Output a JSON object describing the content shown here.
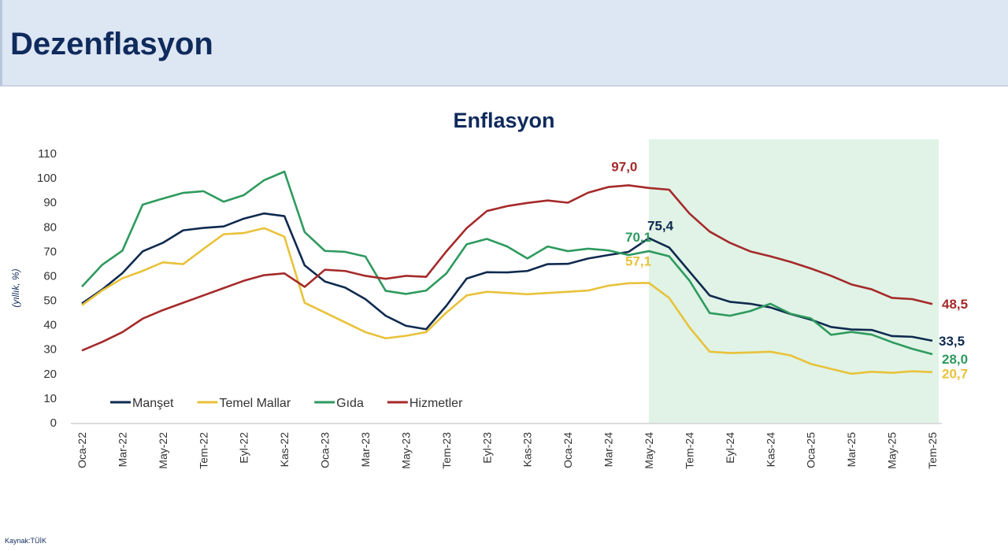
{
  "header": {
    "title": "Dezenflasyon"
  },
  "footer": {
    "source": "Kaynak:TÜİK"
  },
  "chart_data": {
    "type": "line",
    "title": "Enflasyon",
    "ylabel": "(yıllık, %)",
    "ylim": [
      0,
      110
    ],
    "yticks": [
      0,
      10,
      20,
      30,
      40,
      50,
      60,
      70,
      80,
      90,
      100,
      110
    ],
    "grid": false,
    "legend_position": "bottom-left",
    "x": [
      "Oca-22",
      "Şub-22",
      "Mar-22",
      "Nis-22",
      "May-22",
      "Haz-22",
      "Tem-22",
      "Ağu-22",
      "Eyl-22",
      "Eki-22",
      "Kas-22",
      "Ara-22",
      "Oca-23",
      "Şub-23",
      "Mar-23",
      "Nis-23",
      "May-23",
      "Haz-23",
      "Tem-23",
      "Ağu-23",
      "Eyl-23",
      "Eki-23",
      "Kas-23",
      "Ara-23",
      "Oca-24",
      "Şub-24",
      "Mar-24",
      "Nis-24",
      "May-24",
      "Haz-24",
      "Tem-24",
      "Ağu-24",
      "Eyl-24",
      "Eki-24",
      "Kas-24",
      "Ara-24",
      "Oca-25",
      "Şub-25",
      "Mar-25",
      "Nis-25",
      "May-25",
      "Haz-25",
      "Tem-25"
    ],
    "xtick_labels": [
      "Oca-22",
      "Mar-22",
      "May-22",
      "Tem-22",
      "Eyl-22",
      "Kas-22",
      "Oca-23",
      "Mar-23",
      "May-23",
      "Tem-23",
      "Eyl-23",
      "Kas-23",
      "Oca-24",
      "Mar-24",
      "May-24",
      "Tem-24",
      "Eyl-24",
      "Kas-24",
      "Oca-25",
      "Mar-25",
      "May-25",
      "Tem-25"
    ],
    "shaded_region": {
      "from": "May-24",
      "to": "Tem-25",
      "color": "#e0f3e6"
    },
    "series": [
      {
        "name": "Manşet",
        "color": "#0f2a4f",
        "values": [
          48.7,
          54.4,
          61.1,
          70.0,
          73.5,
          78.6,
          79.6,
          80.2,
          83.4,
          85.5,
          84.4,
          64.3,
          57.7,
          55.2,
          50.5,
          43.7,
          39.6,
          38.2,
          47.8,
          58.9,
          61.5,
          61.4,
          62.0,
          64.8,
          64.9,
          67.1,
          68.5,
          69.8,
          75.4,
          71.6,
          61.8,
          52.0,
          49.4,
          48.6,
          47.1,
          44.4,
          42.1,
          39.1,
          38.1,
          37.9,
          35.4,
          35.1,
          33.5
        ]
      },
      {
        "name": "Temel Mallar",
        "color": "#e8c23a",
        "values": [
          48.0,
          54.0,
          59.0,
          62.0,
          65.5,
          64.8,
          71.0,
          77.0,
          77.5,
          79.5,
          76.0,
          49.0,
          45.0,
          41.0,
          37.0,
          34.5,
          35.5,
          37.0,
          45.0,
          52.0,
          53.5,
          53.0,
          52.5,
          53.0,
          53.5,
          54.0,
          56.0,
          57.0,
          57.1,
          51.0,
          39.0,
          29.0,
          28.5,
          28.7,
          29.0,
          27.5,
          24.0,
          22.0,
          20.0,
          20.8,
          20.4,
          21.0,
          20.7
        ]
      },
      {
        "name": "Gıda",
        "color": "#2e9a5e",
        "values": [
          55.6,
          64.5,
          70.3,
          89.1,
          91.6,
          93.9,
          94.6,
          90.3,
          93.0,
          99.1,
          102.6,
          77.9,
          70.2,
          69.8,
          67.9,
          53.9,
          52.6,
          54.0,
          61.0,
          72.9,
          75.1,
          72.0,
          67.1,
          72.0,
          70.1,
          71.1,
          70.4,
          68.5,
          70.1,
          68.0,
          58.1,
          44.8,
          43.7,
          45.6,
          48.6,
          44.5,
          42.6,
          35.9,
          37.1,
          36.0,
          32.9,
          30.2,
          28.0
        ]
      },
      {
        "name": "Hizmetler",
        "color": "#a52a2a",
        "values": [
          29.5,
          33.0,
          37.0,
          42.5,
          46.0,
          49.0,
          52.0,
          55.0,
          58.0,
          60.3,
          61.0,
          55.5,
          62.5,
          62.0,
          60.0,
          58.8,
          60.0,
          59.6,
          70.0,
          79.5,
          86.5,
          88.5,
          89.8,
          90.8,
          89.9,
          94.0,
          96.3,
          97.0,
          95.9,
          95.2,
          85.5,
          78.1,
          73.5,
          70.0,
          68.0,
          65.7,
          63.0,
          60.0,
          56.5,
          54.5,
          51.0,
          50.5,
          48.5
        ]
      }
    ],
    "annotations": [
      {
        "text": "97,0",
        "series": "Hizmetler",
        "x": "Nis-24"
      },
      {
        "text": "75,4",
        "series": "Manşet",
        "x": "May-24"
      },
      {
        "text": "70,1",
        "series": "Gıda",
        "x": "May-24"
      },
      {
        "text": "57,1",
        "series": "Temel Mallar",
        "x": "May-24"
      },
      {
        "text": "48,5",
        "series": "Hizmetler",
        "x": "Tem-25"
      },
      {
        "text": "33,5",
        "series": "Manşet",
        "x": "Tem-25"
      },
      {
        "text": "28,0",
        "series": "Gıda",
        "x": "Tem-25"
      },
      {
        "text": "20,7",
        "series": "Temel Mallar",
        "x": "Tem-25"
      }
    ]
  }
}
